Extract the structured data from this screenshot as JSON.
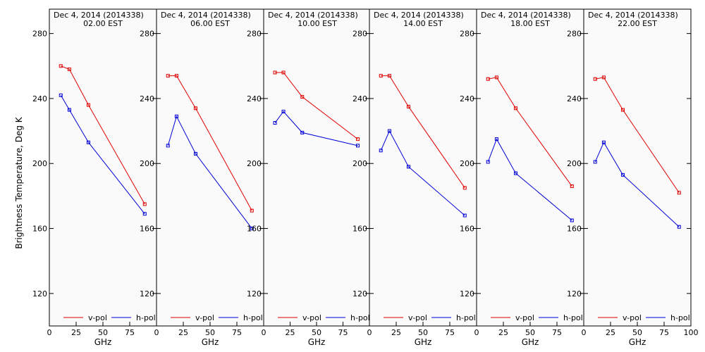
{
  "chart_data": {
    "type": "line",
    "ylabel": "Brightness Temperature, Deg K",
    "xlabel": "GHz",
    "xlim": [
      0,
      100
    ],
    "ylim": [
      100,
      295
    ],
    "xticks": [
      0,
      25,
      50,
      75,
      100
    ],
    "xtick_labels": [
      "0",
      "25",
      "50",
      "75",
      "100"
    ],
    "yticks": [
      120,
      160,
      200,
      240,
      280
    ],
    "ytick_labels": [
      "120",
      "160",
      "200",
      "240",
      "280"
    ],
    "grid": false,
    "legend": "bottom",
    "colors": {
      "v_pol": "#e00000",
      "h_pol": "#0000d8"
    },
    "panels": [
      {
        "date_line": "Dec  4, 2014 (2014338)",
        "time_line": "02.00 EST",
        "series": [
          {
            "name": "v-pol",
            "x": [
              10.7,
              18.7,
              36.5,
              89
            ],
            "y": [
              260,
              258,
              236,
              175
            ]
          },
          {
            "name": "h-pol",
            "x": [
              10.7,
              18.7,
              36.5,
              89
            ],
            "y": [
              242,
              233,
              213,
              169
            ]
          }
        ]
      },
      {
        "date_line": "Dec  4, 2014 (2014338)",
        "time_line": "06.00 EST",
        "series": [
          {
            "name": "v-pol",
            "x": [
              10.7,
              18.7,
              36.5,
              89
            ],
            "y": [
              254,
              254,
              234,
              171
            ]
          },
          {
            "name": "h-pol",
            "x": [
              10.7,
              18.7,
              36.5,
              89
            ],
            "y": [
              211,
              229,
              206,
              160
            ]
          }
        ]
      },
      {
        "date_line": "Dec  4, 2014 (2014338)",
        "time_line": "10.00 EST",
        "series": [
          {
            "name": "v-pol",
            "x": [
              10.7,
              18.7,
              36.5,
              89
            ],
            "y": [
              256,
              256,
              241,
              215
            ]
          },
          {
            "name": "h-pol",
            "x": [
              10.7,
              18.7,
              36.5,
              89
            ],
            "y": [
              225,
              232,
              219,
              211
            ]
          }
        ]
      },
      {
        "date_line": "Dec  4, 2014 (2014338)",
        "time_line": "14.00 EST",
        "series": [
          {
            "name": "v-pol",
            "x": [
              10.7,
              18.7,
              36.5,
              89
            ],
            "y": [
              254,
              254,
              235,
              185
            ]
          },
          {
            "name": "h-pol",
            "x": [
              10.7,
              18.7,
              36.5,
              89
            ],
            "y": [
              208,
              220,
              198,
              168
            ]
          }
        ]
      },
      {
        "date_line": "Dec  4, 2014 (2014338)",
        "time_line": "18.00 EST",
        "series": [
          {
            "name": "v-pol",
            "x": [
              10.7,
              18.7,
              36.5,
              89
            ],
            "y": [
              252,
              253,
              234,
              186
            ]
          },
          {
            "name": "h-pol",
            "x": [
              10.7,
              18.7,
              36.5,
              89
            ],
            "y": [
              201,
              215,
              194,
              165
            ]
          }
        ]
      },
      {
        "date_line": "Dec  4, 2014 (2014338)",
        "time_line": "22.00 EST",
        "series": [
          {
            "name": "v-pol",
            "x": [
              10.7,
              18.7,
              36.5,
              89
            ],
            "y": [
              252,
              253,
              233,
              182
            ]
          },
          {
            "name": "h-pol",
            "x": [
              10.7,
              18.7,
              36.5,
              89
            ],
            "y": [
              201,
              213,
              193,
              161
            ]
          }
        ]
      }
    ]
  }
}
